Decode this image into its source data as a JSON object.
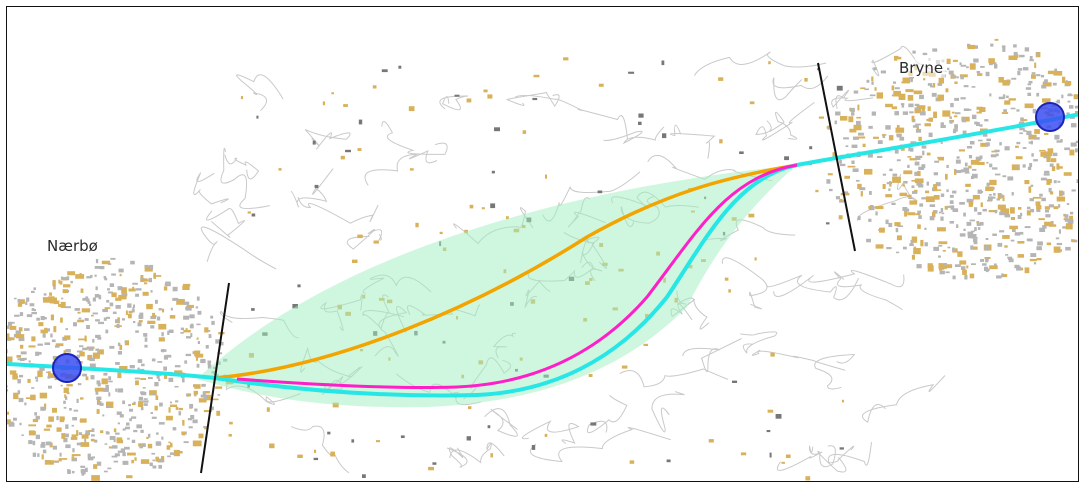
{
  "map": {
    "places": {
      "naerbo": "Nærbø",
      "bryne": "Bryne"
    },
    "colors": {
      "corridor_fill": "#9ff0c0",
      "route_cyan": "#27e6e6",
      "route_magenta": "#ff1fc8",
      "route_orange": "#f2a400",
      "station_fill": "#3a4df2",
      "station_stroke": "#1c24b5",
      "building": "#d8b15a",
      "contour": "#c9c9c9",
      "street": "#b5b5b5"
    },
    "station_icon": "station-circle-icon"
  }
}
